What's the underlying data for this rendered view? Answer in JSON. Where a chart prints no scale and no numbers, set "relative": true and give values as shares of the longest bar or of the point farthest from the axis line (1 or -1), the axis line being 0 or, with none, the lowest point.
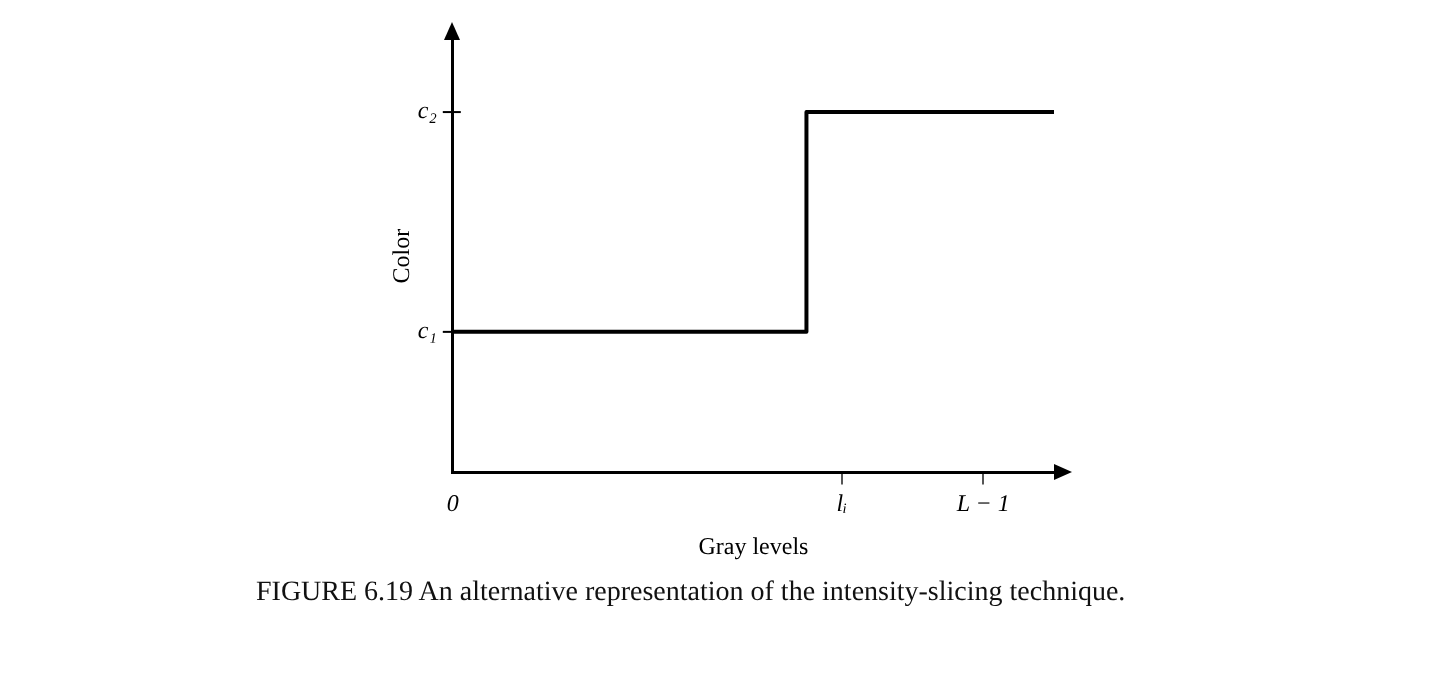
{
  "chart_data": {
    "type": "step",
    "relative": true,
    "xlabel": "Gray levels",
    "ylabel": "Color",
    "annotations": [
      "FIGURE 6.19  An alternative representation of the intensity-slicing technique.",
      "c₁",
      "c₂"
    ],
    "categories": [
      "0",
      null,
      null,
      null,
      null,
      null,
      null,
      null,
      null,
      null,
      null,
      "lᵢ",
      null,
      null,
      null,
      "L − 1",
      null,
      null
    ],
    "series": [
      {
        "color": "#000000",
        "values": [
          0.39,
          0.39,
          0.39,
          0.39,
          0.39,
          0.39,
          0.39,
          0.39,
          0.39,
          0.39,
          0.39,
          1,
          1,
          1,
          1,
          1,
          1,
          1
        ]
      }
    ],
    "grid": false,
    "legend": false,
    "marker": "none",
    "line_style": "solid"
  }
}
